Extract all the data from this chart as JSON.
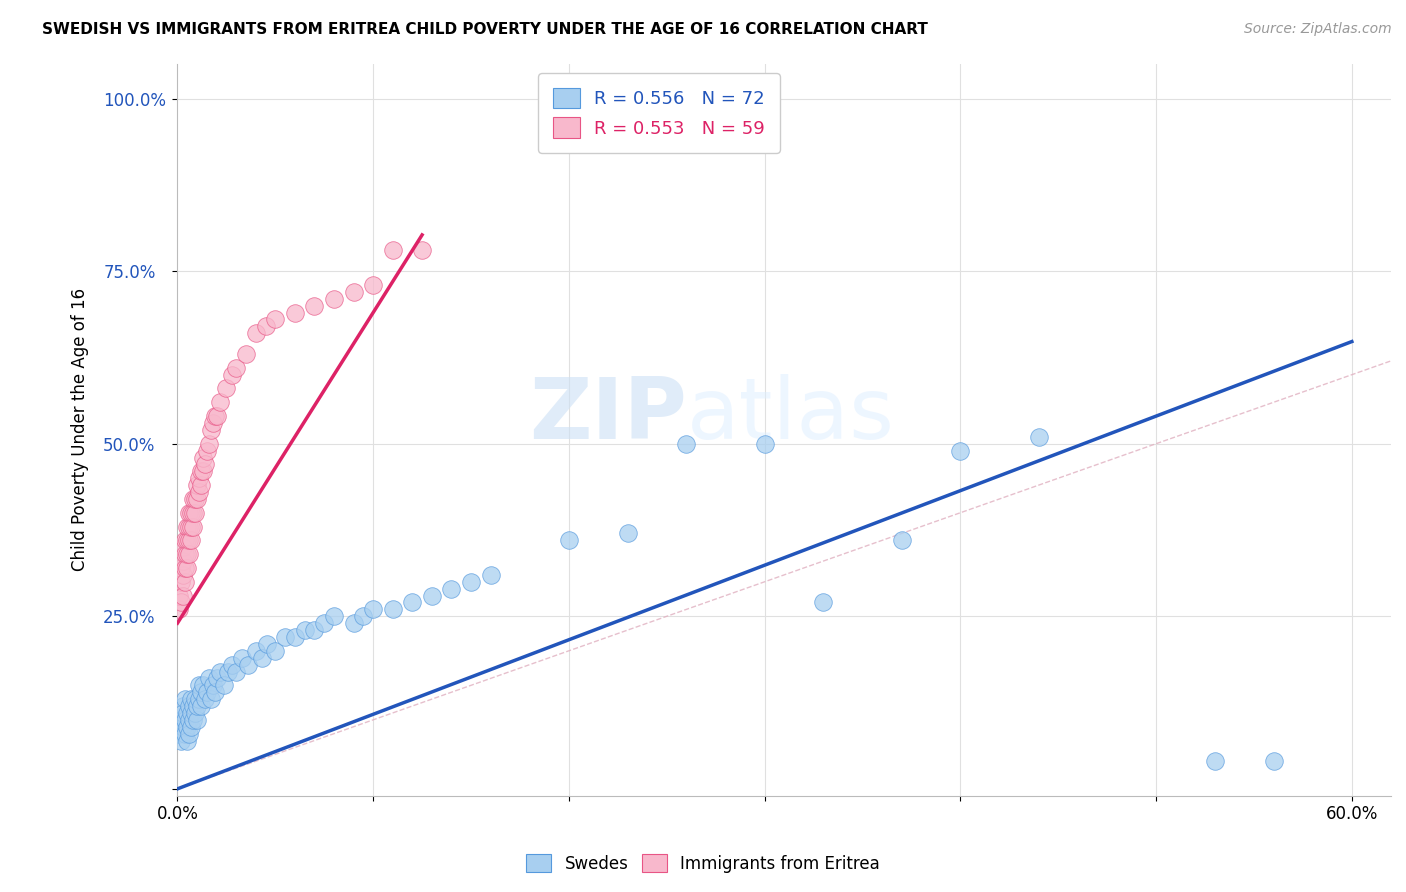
{
  "title": "SWEDISH VS IMMIGRANTS FROM ERITREA CHILD POVERTY UNDER THE AGE OF 16 CORRELATION CHART",
  "source": "Source: ZipAtlas.com",
  "ylabel": "Child Poverty Under the Age of 16",
  "xlim": [
    0.0,
    0.62
  ],
  "ylim": [
    -0.01,
    1.05
  ],
  "legend_blue_label": "R = 0.556   N = 72",
  "legend_pink_label": "R = 0.553   N = 59",
  "watermark_zip": "ZIP",
  "watermark_atlas": "atlas",
  "blue_fill": "#a8cff0",
  "blue_edge": "#5599dd",
  "pink_fill": "#f8b8cc",
  "pink_edge": "#e85585",
  "blue_line": "#2255bb",
  "pink_line": "#dd2266",
  "diag_color": "#e0b0c0",
  "background_color": "#ffffff",
  "grid_color": "#e0e0e0",
  "blue_line_intercept": 0.0,
  "blue_line_slope": 1.08,
  "pink_line_intercept": 0.24,
  "pink_line_slope": 4.5,
  "swedes_x": [
    0.001,
    0.002,
    0.002,
    0.003,
    0.003,
    0.003,
    0.004,
    0.004,
    0.004,
    0.005,
    0.005,
    0.005,
    0.006,
    0.006,
    0.006,
    0.007,
    0.007,
    0.007,
    0.008,
    0.008,
    0.009,
    0.009,
    0.01,
    0.01,
    0.011,
    0.011,
    0.012,
    0.012,
    0.013,
    0.014,
    0.015,
    0.016,
    0.017,
    0.018,
    0.019,
    0.02,
    0.022,
    0.024,
    0.026,
    0.028,
    0.03,
    0.033,
    0.036,
    0.04,
    0.043,
    0.046,
    0.05,
    0.055,
    0.06,
    0.065,
    0.07,
    0.075,
    0.08,
    0.09,
    0.095,
    0.1,
    0.11,
    0.12,
    0.13,
    0.14,
    0.15,
    0.16,
    0.2,
    0.23,
    0.26,
    0.3,
    0.33,
    0.37,
    0.4,
    0.44,
    0.53,
    0.56
  ],
  "swedes_y": [
    0.08,
    0.1,
    0.07,
    0.09,
    0.12,
    0.11,
    0.1,
    0.08,
    0.13,
    0.09,
    0.11,
    0.07,
    0.12,
    0.1,
    0.08,
    0.13,
    0.09,
    0.11,
    0.1,
    0.12,
    0.11,
    0.13,
    0.1,
    0.12,
    0.13,
    0.15,
    0.12,
    0.14,
    0.15,
    0.13,
    0.14,
    0.16,
    0.13,
    0.15,
    0.14,
    0.16,
    0.17,
    0.15,
    0.17,
    0.18,
    0.17,
    0.19,
    0.18,
    0.2,
    0.19,
    0.21,
    0.2,
    0.22,
    0.22,
    0.23,
    0.23,
    0.24,
    0.25,
    0.24,
    0.25,
    0.26,
    0.26,
    0.27,
    0.28,
    0.29,
    0.3,
    0.31,
    0.36,
    0.37,
    0.5,
    0.5,
    0.27,
    0.36,
    0.49,
    0.51,
    0.04,
    0.04
  ],
  "eritrea_x": [
    0.001,
    0.001,
    0.002,
    0.002,
    0.002,
    0.003,
    0.003,
    0.003,
    0.003,
    0.004,
    0.004,
    0.004,
    0.004,
    0.005,
    0.005,
    0.005,
    0.005,
    0.006,
    0.006,
    0.006,
    0.006,
    0.007,
    0.007,
    0.007,
    0.008,
    0.008,
    0.008,
    0.009,
    0.009,
    0.01,
    0.01,
    0.011,
    0.011,
    0.012,
    0.012,
    0.013,
    0.013,
    0.014,
    0.015,
    0.016,
    0.017,
    0.018,
    0.019,
    0.02,
    0.022,
    0.025,
    0.028,
    0.03,
    0.035,
    0.04,
    0.045,
    0.05,
    0.06,
    0.07,
    0.08,
    0.09,
    0.1,
    0.11,
    0.125
  ],
  "eritrea_y": [
    0.26,
    0.28,
    0.27,
    0.3,
    0.32,
    0.28,
    0.31,
    0.33,
    0.35,
    0.3,
    0.32,
    0.34,
    0.36,
    0.32,
    0.34,
    0.36,
    0.38,
    0.34,
    0.36,
    0.38,
    0.4,
    0.36,
    0.38,
    0.4,
    0.38,
    0.4,
    0.42,
    0.4,
    0.42,
    0.42,
    0.44,
    0.43,
    0.45,
    0.44,
    0.46,
    0.46,
    0.48,
    0.47,
    0.49,
    0.5,
    0.52,
    0.53,
    0.54,
    0.54,
    0.56,
    0.58,
    0.6,
    0.61,
    0.63,
    0.66,
    0.67,
    0.68,
    0.69,
    0.7,
    0.71,
    0.72,
    0.73,
    0.78,
    0.78
  ]
}
